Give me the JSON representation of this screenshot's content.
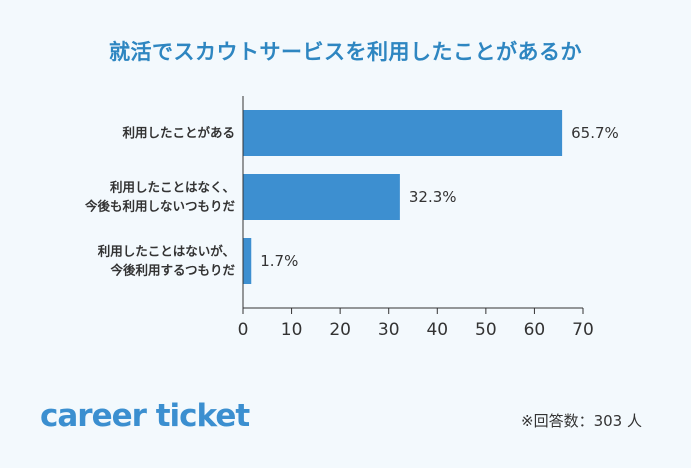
{
  "chart_data": {
    "type": "bar",
    "orientation": "horizontal",
    "title": "就活でスカウトサービスを利用したことがあるか",
    "categories": [
      [
        "利用したことがある"
      ],
      [
        "利用したことはなく、",
        "今後も利用しないつもりだ"
      ],
      [
        "利用したことはないが、",
        "今後利用するつもりだ"
      ]
    ],
    "values": [
      65.7,
      32.3,
      1.7
    ],
    "value_labels": [
      "65.7%",
      "32.3%",
      "1.7%"
    ],
    "xlim": [
      0,
      70
    ],
    "xticks": [
      0,
      10,
      20,
      30,
      40,
      50,
      60,
      70
    ],
    "bar_color": "#3d8fd0",
    "grid": false
  },
  "footer": {
    "logo": "career ticket",
    "note": "※回答数：303 人"
  }
}
